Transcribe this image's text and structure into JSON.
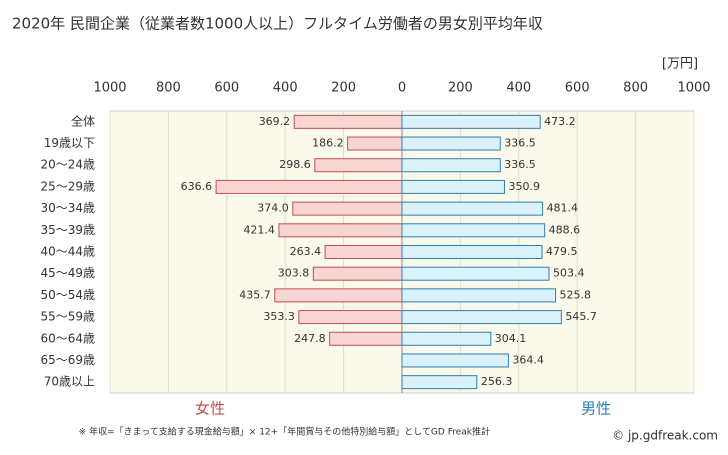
{
  "chart_data": {
    "type": "butterfly-bar",
    "title": "2020年 民間企業（従業者数1000人以上）フルタイム労働者の男女別平均年収",
    "unit": "[万円]",
    "categories": [
      "全体",
      "19歳以下",
      "20～24歳",
      "25～29歳",
      "30～34歳",
      "35～39歳",
      "40～44歳",
      "45～49歳",
      "50～54歳",
      "55～59歳",
      "60～64歳",
      "65～69歳",
      "70歳以上"
    ],
    "series": [
      {
        "name": "女性",
        "side": "left",
        "color": "#f7d5d3",
        "stroke": "#c0504d",
        "label_color": "#c0504d",
        "values": [
          369.2,
          186.2,
          298.6,
          636.6,
          374.0,
          421.4,
          263.4,
          303.8,
          435.7,
          353.3,
          247.8,
          null,
          null
        ],
        "value_labels": [
          "369.2",
          "186.2",
          "298.6",
          "636.6",
          "374.0",
          "421.4",
          "263.4",
          "303.8",
          "435.7",
          "353.3",
          "247.8",
          null,
          null
        ]
      },
      {
        "name": "男性",
        "side": "right",
        "color": "#dbf2fa",
        "stroke": "#2c7fb3",
        "label_color": "#2c7fb3",
        "values": [
          473.2,
          336.5,
          336.5,
          350.9,
          481.4,
          488.6,
          479.5,
          503.4,
          525.8,
          545.7,
          304.1,
          364.4,
          256.3
        ],
        "value_labels": [
          "473.2",
          "336.5",
          "336.5",
          "350.9",
          "481.4",
          "488.6",
          "479.5",
          "503.4",
          "525.8",
          "545.7",
          "304.1",
          "364.4",
          "256.3"
        ]
      }
    ],
    "xlim": [
      0,
      1000
    ],
    "xticks": [
      0,
      200,
      400,
      600,
      800,
      1000
    ],
    "grid": true,
    "footnote": "※ 年収=「きまって支給する現金給与額」× 12+「年間賞与その他特別給与額」としてGD Freak推計",
    "credit": "© jp.gdfreak.com"
  }
}
